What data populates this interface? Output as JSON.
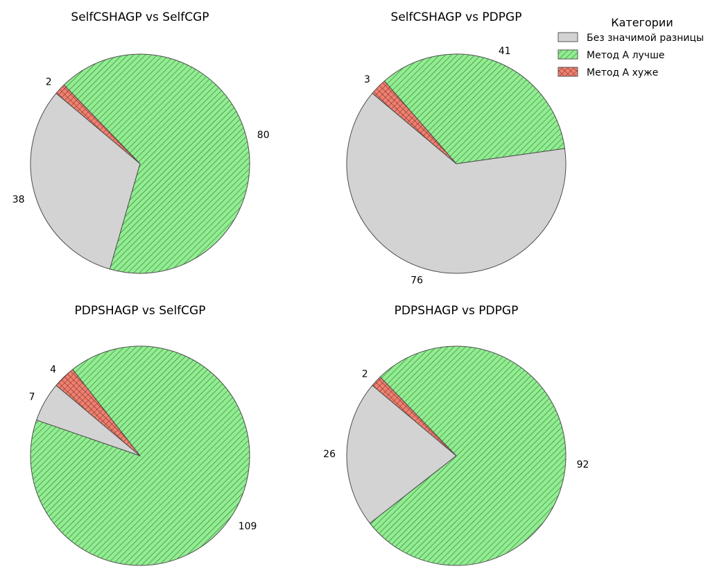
{
  "legend": {
    "title": "Категории",
    "entries": [
      {
        "label": "Без значимой разницы",
        "color": "#d3d3d3",
        "pattern": "none"
      },
      {
        "label": "Метод А лучше",
        "color": "#90ee90",
        "pattern": "diagonal-hatch"
      },
      {
        "label": "Метод А хуже",
        "color": "#f08070",
        "pattern": "cross-hatch"
      }
    ]
  },
  "chart_data": [
    {
      "type": "pie",
      "title": "SelfCSHAGP vs SelfCGP",
      "categories": [
        "Без значимой разницы",
        "Метод А лучше",
        "Метод А хуже"
      ],
      "values": [
        38,
        80,
        2
      ]
    },
    {
      "type": "pie",
      "title": "SelfCSHAGP vs PDPGP",
      "categories": [
        "Без значимой разницы",
        "Метод А лучше",
        "Метод А хуже"
      ],
      "values": [
        76,
        41,
        3
      ]
    },
    {
      "type": "pie",
      "title": "PDPSHAGP vs SelfCGP",
      "categories": [
        "Без значимой разницы",
        "Метод А лучше",
        "Метод А хуже"
      ],
      "values": [
        7,
        109,
        4
      ]
    },
    {
      "type": "pie",
      "title": "PDPSHAGP vs PDPGP",
      "categories": [
        "Без значимой разницы",
        "Метод А лучше",
        "Метод А хуже"
      ],
      "values": [
        26,
        92,
        2
      ]
    }
  ]
}
